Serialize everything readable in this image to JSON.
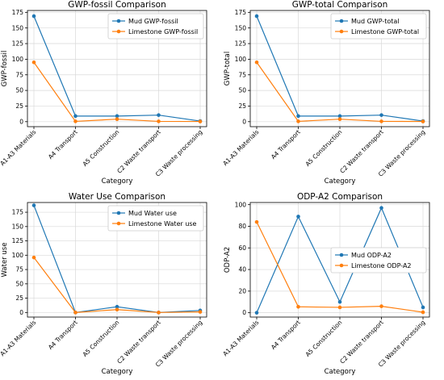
{
  "colors": {
    "mud": "#1f77b4",
    "limestone": "#ff7f0e"
  },
  "categories": [
    "A1-A3 Materials",
    "A4 Transport",
    "A5 Construction",
    "C2 Waste transport",
    "C3 Waste processing"
  ],
  "chart_data": [
    {
      "type": "line",
      "title": "GWP-fossil Comparison",
      "xlabel": "Category",
      "ylabel": "GWP-fossil",
      "categories": [
        "A1-A3 Materials",
        "A4 Transport",
        "A5 Construction",
        "C2 Waste transport",
        "C3 Waste processing"
      ],
      "ylim": [
        -8,
        178
      ],
      "yticks": [
        0,
        25,
        50,
        75,
        100,
        125,
        150,
        175
      ],
      "grid": true,
      "legend_position": "top-right",
      "series": [
        {
          "name": "Mud GWP-fossil",
          "color": "#1f77b4",
          "values": [
            169,
            9,
            9,
            10.5,
            1
          ]
        },
        {
          "name": "Limestone GWP-fossil",
          "color": "#ff7f0e",
          "values": [
            95,
            0.5,
            4,
            0.5,
            0.3
          ]
        }
      ]
    },
    {
      "type": "line",
      "title": "GWP-total Comparison",
      "xlabel": "Category",
      "ylabel": "GWP-total",
      "categories": [
        "A1-A3 Materials",
        "A4 Transport",
        "A5 Construction",
        "C2 Waste transport",
        "C3 Waste processing"
      ],
      "ylim": [
        -8,
        178
      ],
      "yticks": [
        0,
        25,
        50,
        75,
        100,
        125,
        150,
        175
      ],
      "grid": true,
      "legend_position": "top-right",
      "series": [
        {
          "name": "Mud GWP-total",
          "color": "#1f77b4",
          "values": [
            169,
            9,
            9,
            10.5,
            1
          ]
        },
        {
          "name": "Limestone GWP-total",
          "color": "#ff7f0e",
          "values": [
            95,
            0.5,
            4,
            0.5,
            0.3
          ]
        }
      ]
    },
    {
      "type": "line",
      "title": "Water Use Comparison",
      "xlabel": "Category",
      "ylabel": "Water use",
      "categories": [
        "A1-A3 Materials",
        "A4 Transport",
        "A5 Construction",
        "C2 Waste transport",
        "C3 Waste processing"
      ],
      "ylim": [
        -8,
        192
      ],
      "yticks": [
        0,
        25,
        50,
        75,
        100,
        125,
        150,
        175
      ],
      "grid": true,
      "legend_position": "top-right",
      "series": [
        {
          "name": "Mud Water use",
          "color": "#1f77b4",
          "values": [
            187,
            0,
            10,
            0,
            3.5
          ]
        },
        {
          "name": "Limestone Water use",
          "color": "#ff7f0e",
          "values": [
            96,
            0,
            5,
            0,
            1
          ]
        }
      ]
    },
    {
      "type": "line",
      "title": "ODP-A2 Comparison",
      "xlabel": "Category",
      "ylabel": "ODP-A2",
      "categories": [
        "A1-A3 Materials",
        "A4 Transport",
        "A5 Construction",
        "C2 Waste transport",
        "C3 Waste processing"
      ],
      "ylim": [
        -4,
        102
      ],
      "yticks": [
        0,
        20,
        40,
        60,
        80,
        100
      ],
      "grid": true,
      "legend_position": "center-right",
      "series": [
        {
          "name": "Mud ODP-A2",
          "color": "#1f77b4",
          "values": [
            0,
            89,
            10,
            97,
            5
          ]
        },
        {
          "name": "Limestone ODP-A2",
          "color": "#ff7f0e",
          "values": [
            84,
            5.5,
            5,
            6,
            0.5
          ]
        }
      ]
    }
  ]
}
